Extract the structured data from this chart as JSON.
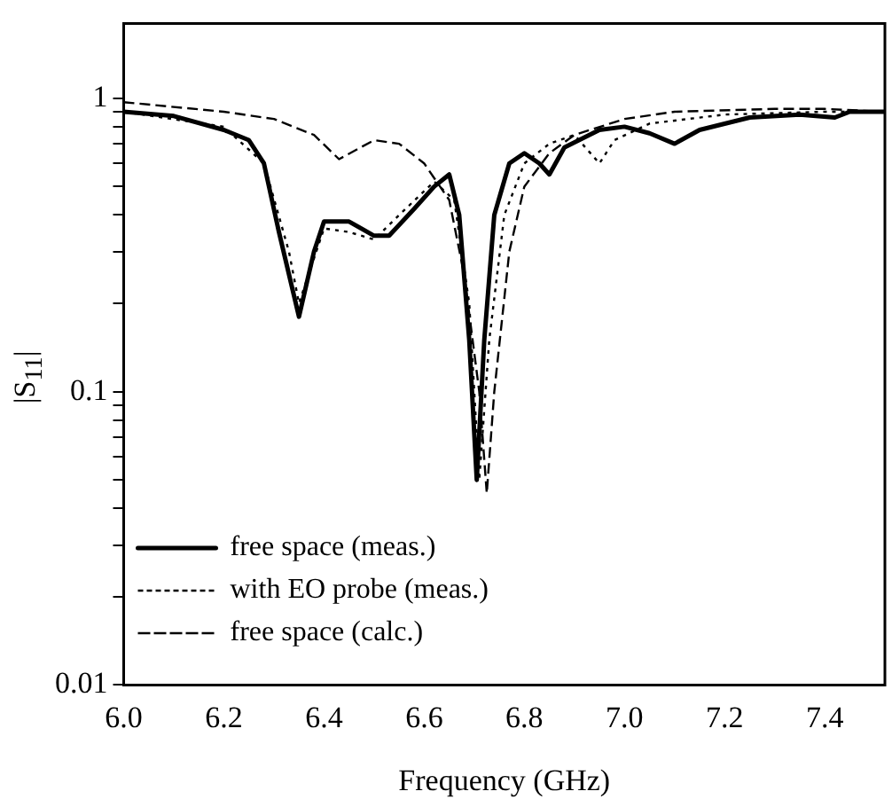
{
  "chart_data": {
    "type": "line",
    "xlabel": "Frequency (GHz)",
    "ylabel": "|S$_{11}$|",
    "xlim": [
      6.0,
      7.52
    ],
    "xticks": [
      {
        "value": 6.0,
        "label": "6.0"
      },
      {
        "value": 6.2,
        "label": "6.2"
      },
      {
        "value": 6.4,
        "label": "6.4"
      },
      {
        "value": 6.6,
        "label": "6.6"
      },
      {
        "value": 6.8,
        "label": "6.8"
      },
      {
        "value": 7.0,
        "label": "7.0"
      },
      {
        "value": 7.2,
        "label": "7.2"
      },
      {
        "value": 7.4,
        "label": "7.4"
      }
    ],
    "ylim": [
      0.01,
      1.8
    ],
    "log": "y",
    "yticks": [
      {
        "value": 0.01,
        "label": "0.01"
      },
      {
        "value": 0.02,
        "label": null
      },
      {
        "value": 0.03,
        "label": null
      },
      {
        "value": 0.04,
        "label": null
      },
      {
        "value": 0.05,
        "label": null
      },
      {
        "value": 0.06,
        "label": null
      },
      {
        "value": 0.07,
        "label": null
      },
      {
        "value": 0.08,
        "label": null
      },
      {
        "value": 0.09,
        "label": null
      },
      {
        "value": 0.1,
        "label": "0.1"
      },
      {
        "value": 0.2,
        "label": null
      },
      {
        "value": 0.3,
        "label": null
      },
      {
        "value": 0.4,
        "label": null
      },
      {
        "value": 0.5,
        "label": null
      },
      {
        "value": 0.6,
        "label": null
      },
      {
        "value": 0.7,
        "label": null
      },
      {
        "value": 0.8,
        "label": null
      },
      {
        "value": 0.9,
        "label": null
      },
      {
        "value": 1,
        "label": "1"
      }
    ],
    "grid": false,
    "legend": "bottom left",
    "marker": "none",
    "series": [
      {
        "name": "free space (meas.)",
        "color": "#000000",
        "line_style": "solid",
        "x": [
          6.0,
          6.1,
          6.2,
          6.25,
          6.28,
          6.31,
          6.35,
          6.38,
          6.4,
          6.45,
          6.5,
          6.53,
          6.58,
          6.62,
          6.65,
          6.67,
          6.69,
          6.705,
          6.72,
          6.74,
          6.77,
          6.8,
          6.83,
          6.85,
          6.88,
          6.95,
          7.0,
          7.05,
          7.1,
          7.15,
          7.25,
          7.35,
          7.42,
          7.45,
          7.52
        ],
        "values": [
          0.9,
          0.87,
          0.78,
          0.72,
          0.6,
          0.35,
          0.18,
          0.3,
          0.38,
          0.38,
          0.34,
          0.34,
          0.42,
          0.5,
          0.55,
          0.4,
          0.15,
          0.05,
          0.15,
          0.4,
          0.6,
          0.65,
          0.6,
          0.55,
          0.68,
          0.78,
          0.8,
          0.76,
          0.7,
          0.78,
          0.86,
          0.88,
          0.86,
          0.9,
          0.9
        ]
      },
      {
        "name": "with EO probe (meas.)",
        "color": "#000000",
        "line_style": "dotted",
        "x": [
          6.0,
          6.2,
          6.28,
          6.33,
          6.35,
          6.4,
          6.45,
          6.5,
          6.55,
          6.62,
          6.66,
          6.69,
          6.71,
          6.73,
          6.76,
          6.8,
          6.85,
          6.9,
          6.95,
          6.98,
          7.05,
          7.2,
          7.4,
          7.52
        ],
        "values": [
          0.9,
          0.8,
          0.6,
          0.3,
          0.2,
          0.36,
          0.35,
          0.33,
          0.4,
          0.52,
          0.45,
          0.2,
          0.05,
          0.15,
          0.4,
          0.6,
          0.7,
          0.75,
          0.6,
          0.72,
          0.82,
          0.88,
          0.9,
          0.9
        ]
      },
      {
        "name": "free space (calc.)",
        "color": "#000000",
        "line_style": "dashed",
        "x": [
          6.0,
          6.2,
          6.3,
          6.38,
          6.43,
          6.5,
          6.55,
          6.6,
          6.65,
          6.68,
          6.71,
          6.725,
          6.74,
          6.77,
          6.8,
          6.85,
          6.9,
          7.0,
          7.1,
          7.3,
          7.4,
          7.52
        ],
        "values": [
          0.97,
          0.9,
          0.85,
          0.75,
          0.62,
          0.72,
          0.7,
          0.6,
          0.45,
          0.25,
          0.1,
          0.045,
          0.1,
          0.3,
          0.5,
          0.65,
          0.75,
          0.85,
          0.9,
          0.92,
          0.92,
          0.9
        ]
      }
    ]
  }
}
